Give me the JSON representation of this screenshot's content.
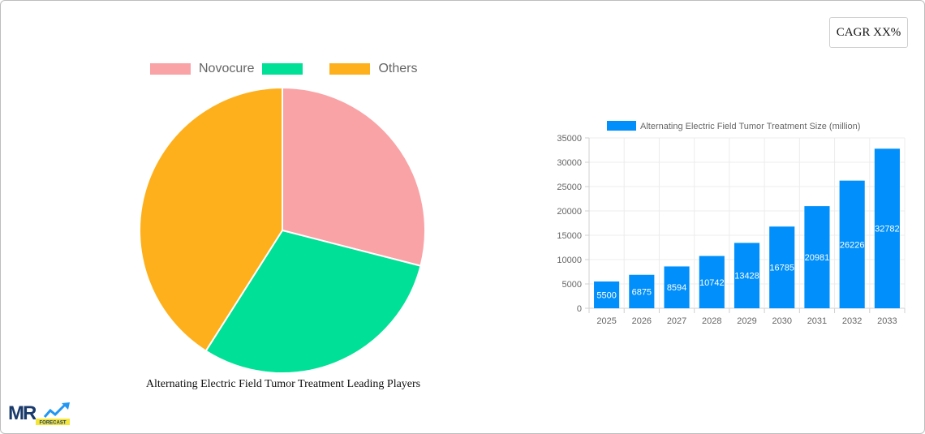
{
  "cagr_badge": {
    "label": "CAGR XX%"
  },
  "pie": {
    "legend": [
      {
        "label": "Novocure",
        "color": "#f9a3a6"
      },
      {
        "label": "",
        "color": "#00e096"
      },
      {
        "label": "Others",
        "color": "#feb01c"
      }
    ],
    "caption": "Alternating Electric Field Tumor Treatment Leading Players"
  },
  "bar": {
    "legend_label": "Alternating Electric Field Tumor Treatment Size (million)",
    "color": "#008ffb"
  },
  "logo": {
    "text": "MR",
    "subtext": "FORECAST"
  },
  "chart_data": [
    {
      "type": "pie",
      "title": "Alternating Electric Field Tumor Treatment Leading Players",
      "categories": [
        "Novocure",
        "",
        "Others"
      ],
      "values": [
        29,
        30,
        41
      ],
      "colors": [
        "#f9a3a6",
        "#00e096",
        "#feb01c"
      ],
      "legend_position": "top"
    },
    {
      "type": "bar",
      "title": "",
      "categories": [
        "2025",
        "2026",
        "2027",
        "2028",
        "2029",
        "2030",
        "2031",
        "2032",
        "2033"
      ],
      "series": [
        {
          "name": "Alternating Electric Field Tumor Treatment Size (million)",
          "values": [
            5500,
            6875,
            8594,
            10742,
            13428,
            16785,
            20981,
            26226,
            32782
          ],
          "color": "#008ffb"
        }
      ],
      "xlabel": "",
      "ylabel": "",
      "ylim": [
        0,
        35000
      ],
      "yticks": [
        0,
        5000,
        10000,
        15000,
        20000,
        25000,
        30000,
        35000
      ],
      "grid": true,
      "data_labels": true,
      "legend_position": "top"
    }
  ]
}
